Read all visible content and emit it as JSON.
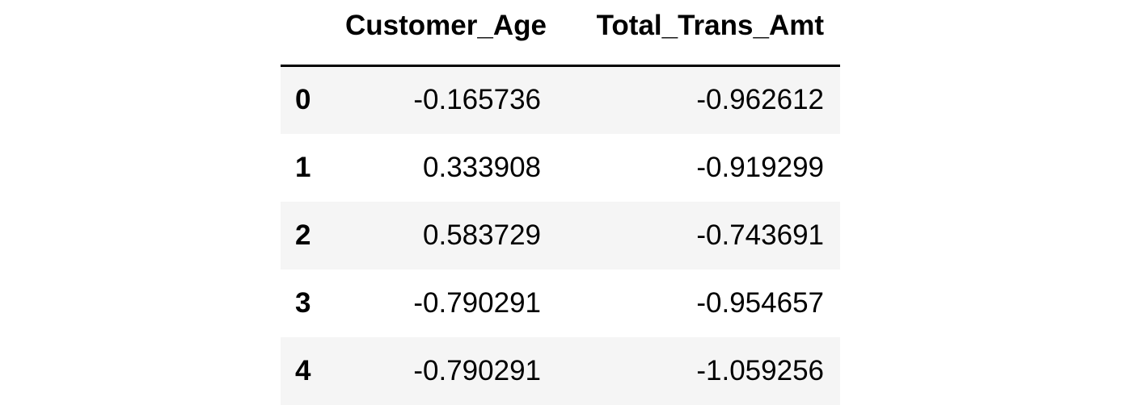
{
  "table": {
    "columns": [
      "Customer_Age",
      "Total_Trans_Amt"
    ],
    "rows": [
      {
        "index": "0",
        "cells": [
          "-0.165736",
          "-0.962612"
        ]
      },
      {
        "index": "1",
        "cells": [
          "0.333908",
          "-0.919299"
        ]
      },
      {
        "index": "2",
        "cells": [
          "0.583729",
          "-0.743691"
        ]
      },
      {
        "index": "3",
        "cells": [
          "-0.790291",
          "-0.954657"
        ]
      },
      {
        "index": "4",
        "cells": [
          "-0.790291",
          "-1.059256"
        ]
      }
    ]
  },
  "colors": {
    "stripe": "#f5f5f5",
    "background": "#ffffff",
    "rule": "#000000"
  }
}
